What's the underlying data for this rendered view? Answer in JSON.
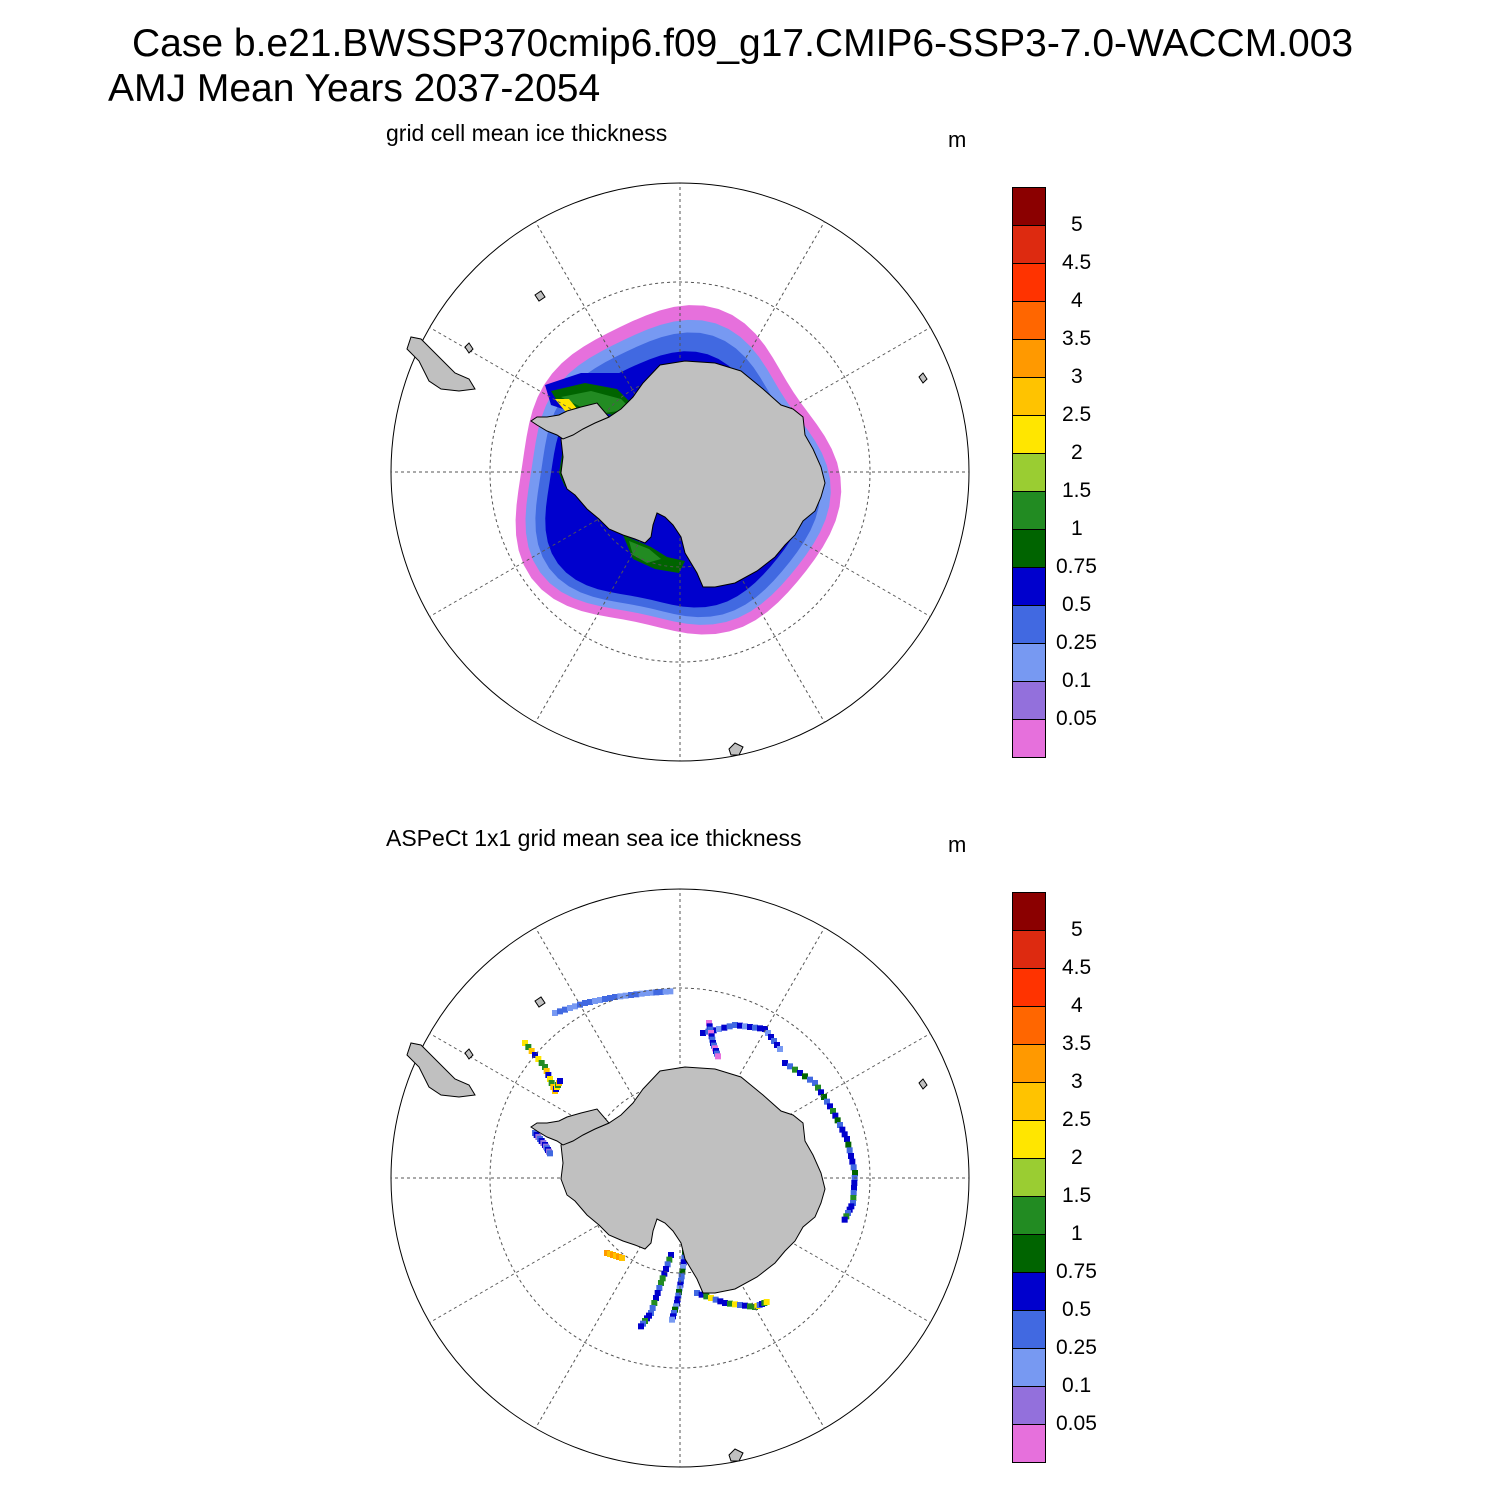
{
  "header": {
    "case_line": "Case b.e21.BWSSP370cmip6.f09_g17.CMIP6-SSP3-7.0-WACCM.003",
    "period_line": "AMJ Mean   Years 2037-2054"
  },
  "colors": {
    "land": "#c0c0c0",
    "grid": "#555555",
    "scale": [
      "#e670dc",
      "#9370dc",
      "#7799f2",
      "#4169e1",
      "#0000cd",
      "#006400",
      "#228b22",
      "#9acd32",
      "#ffe600",
      "#ffc300",
      "#ff9900",
      "#ff6600",
      "#ff3300",
      "#dd2a10",
      "#8b0000"
    ]
  },
  "panels": [
    {
      "title": "grid cell mean ice thickness",
      "units": "m",
      "colorbar_labels": [
        "5",
        "4.5",
        "4",
        "3.5",
        "3",
        "2.5",
        "2",
        "1.5",
        "1",
        "0.75",
        "0.5",
        "0.25",
        "0.1",
        "0.05"
      ]
    },
    {
      "title": "ASPeCt 1x1 grid mean sea ice thickness",
      "units": "m",
      "colorbar_labels": [
        "5",
        "4.5",
        "4",
        "3.5",
        "3",
        "2.5",
        "2",
        "1.5",
        "1",
        "0.75",
        "0.5",
        "0.25",
        "0.1",
        "0.05"
      ]
    }
  ]
}
